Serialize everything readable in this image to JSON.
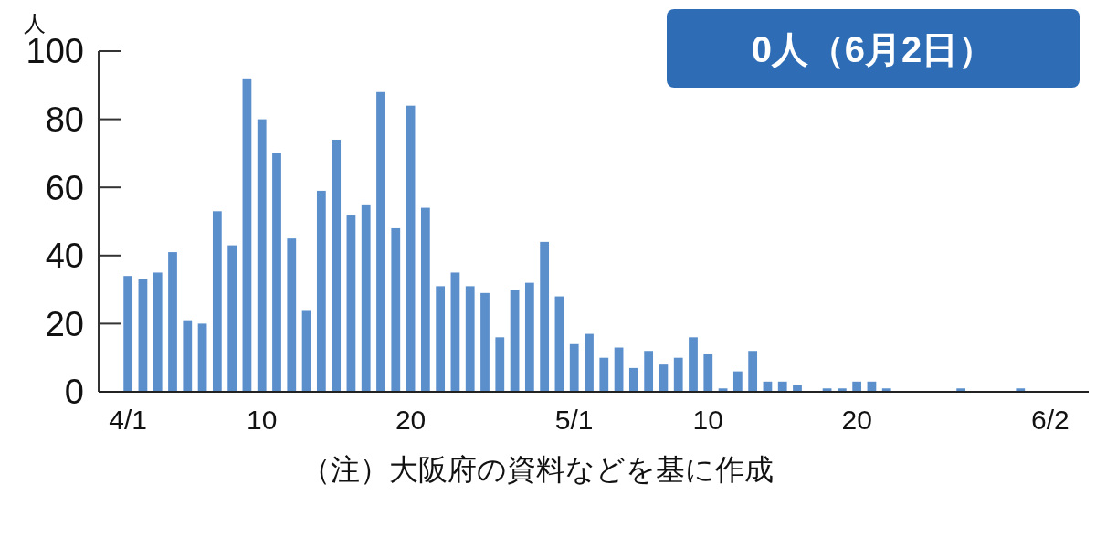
{
  "chart_data": {
    "type": "bar",
    "ylabel": "人",
    "categories": [
      "4/1",
      null,
      null,
      null,
      null,
      null,
      null,
      null,
      null,
      "10",
      null,
      null,
      null,
      null,
      null,
      null,
      null,
      null,
      null,
      "20",
      null,
      null,
      null,
      null,
      null,
      null,
      null,
      null,
      null,
      null,
      "5/1",
      null,
      null,
      null,
      null,
      null,
      null,
      null,
      null,
      "10",
      null,
      null,
      null,
      null,
      null,
      null,
      null,
      null,
      null,
      "20",
      null,
      null,
      null,
      null,
      null,
      null,
      null,
      null,
      null,
      null,
      null,
      null,
      "6/2"
    ],
    "values": [
      34,
      33,
      35,
      41,
      21,
      20,
      53,
      43,
      92,
      80,
      70,
      45,
      24,
      59,
      74,
      52,
      55,
      88,
      48,
      84,
      54,
      31,
      35,
      31,
      29,
      16,
      30,
      32,
      44,
      28,
      14,
      17,
      10,
      13,
      7,
      12,
      8,
      10,
      16,
      11,
      1,
      6,
      12,
      3,
      3,
      2,
      0,
      1,
      1,
      3,
      3,
      1,
      0,
      0,
      0,
      0,
      1,
      0,
      0,
      0,
      1,
      0,
      0
    ],
    "color": "#5b8fcc",
    "ylim": [
      0,
      100
    ],
    "yticks": [
      0,
      20,
      40,
      60,
      80,
      100
    ],
    "annotations": [
      "0人（6月2日）",
      "（注）大阪府の資料などを基に作成"
    ]
  }
}
